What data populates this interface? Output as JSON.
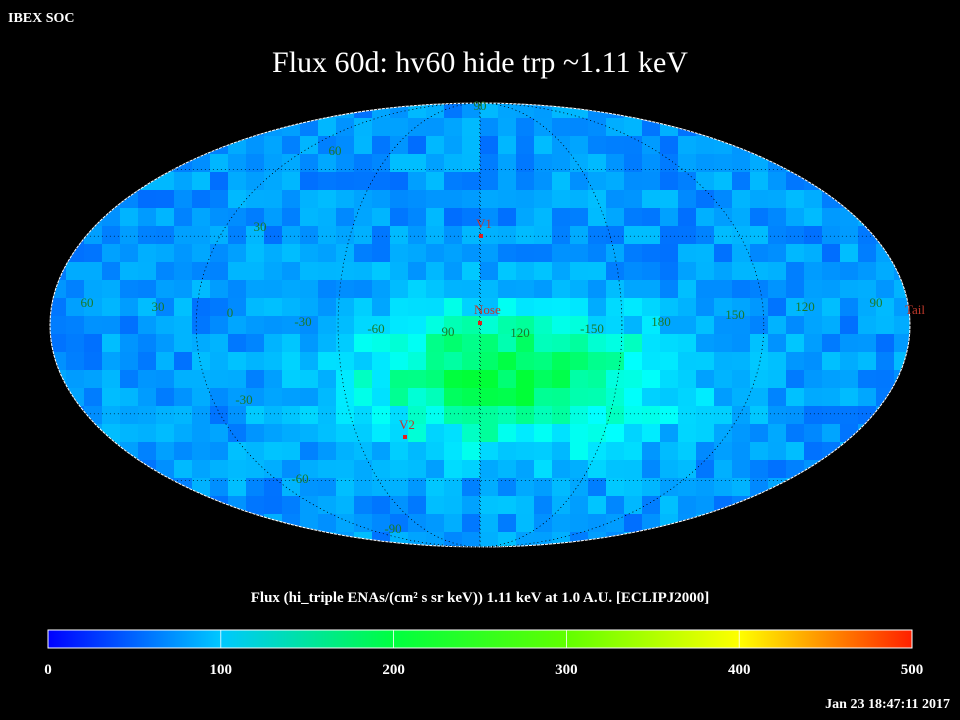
{
  "header": {
    "org": "IBEX SOC",
    "title": "Flux   60d: hv60 hide trp ~1.11 keV"
  },
  "map": {
    "grid_labels": [
      "90",
      "60",
      "30",
      "60",
      "30",
      "0",
      "-30",
      "-60",
      "90",
      "120",
      "-150",
      "180",
      "150",
      "120",
      "90",
      "-30",
      "-60",
      "-90"
    ],
    "markers": [
      "V1",
      "Nose",
      "V2",
      "Tail"
    ]
  },
  "colorbar": {
    "title": "Flux (hi_triple ENAs/(cm² s sr keV))  1.11 keV at 1.0 A.U. [ECLIPJ2000]",
    "range": [
      0,
      500
    ],
    "ticks": [
      0,
      100,
      200,
      300,
      400,
      500
    ]
  },
  "timestamp": "Jan 23 18:47:11 2017"
}
